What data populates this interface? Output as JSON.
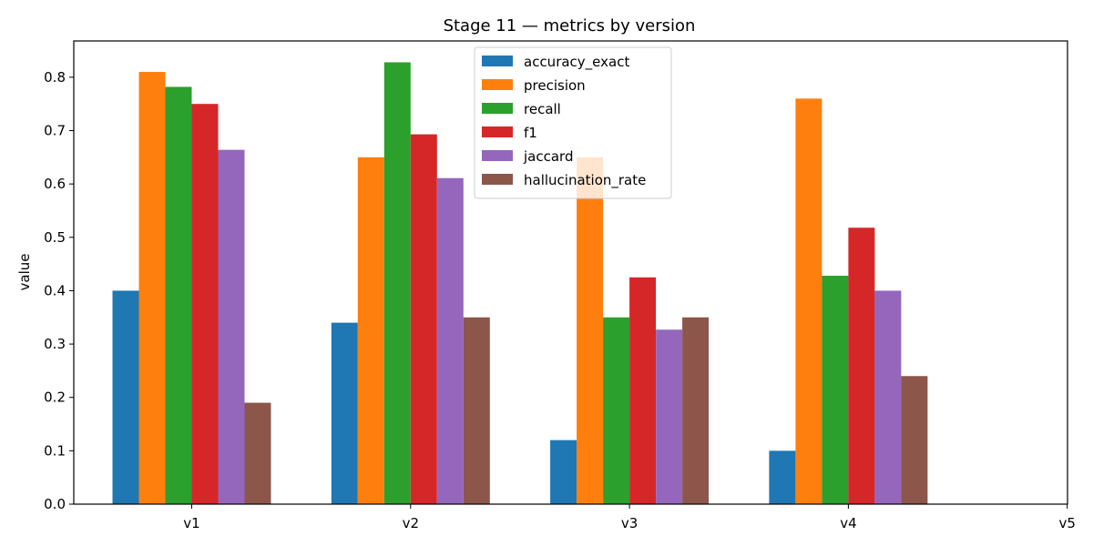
{
  "chart_data": {
    "type": "bar",
    "title": "Stage 11 — metrics by version",
    "xlabel": "",
    "ylabel": "value",
    "categories": [
      "v1",
      "v2",
      "v3",
      "v4",
      "v5"
    ],
    "ylim": [
      0,
      0.868
    ],
    "yticks": [
      0.0,
      0.1,
      0.2,
      0.3,
      0.4,
      0.5,
      0.6,
      0.7,
      0.8
    ],
    "ytick_labels": [
      "0.0",
      "0.1",
      "0.2",
      "0.3",
      "0.4",
      "0.5",
      "0.6",
      "0.7",
      "0.8"
    ],
    "grid": false,
    "legend_position": "top-center",
    "series": [
      {
        "name": "accuracy_exact",
        "color": "#1f77b4",
        "values": [
          0.4,
          0.34,
          0.12,
          0.1,
          null
        ]
      },
      {
        "name": "precision",
        "color": "#ff7f0e",
        "values": [
          0.81,
          0.65,
          0.65,
          0.76,
          null
        ]
      },
      {
        "name": "recall",
        "color": "#2ca02c",
        "values": [
          0.782,
          0.828,
          0.35,
          0.428,
          null
        ]
      },
      {
        "name": "f1",
        "color": "#d62728",
        "values": [
          0.75,
          0.693,
          0.425,
          0.518,
          null
        ]
      },
      {
        "name": "jaccard",
        "color": "#9467bd",
        "values": [
          0.664,
          0.611,
          0.327,
          0.4,
          null
        ]
      },
      {
        "name": "hallucination_rate",
        "color": "#8c564b",
        "values": [
          0.19,
          0.35,
          0.35,
          0.24,
          null
        ]
      }
    ]
  }
}
